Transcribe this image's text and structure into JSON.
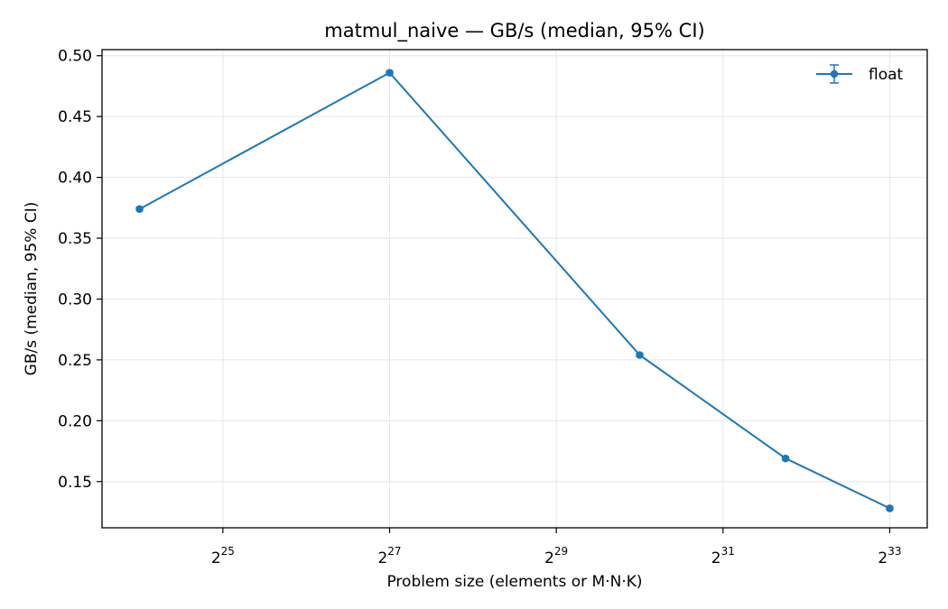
{
  "chart_data": {
    "type": "line",
    "title": "matmul_naive — GB/s (median, 95% CI)",
    "xlabel": "Problem size (elements or M·N·K)",
    "ylabel": "GB/s (median, 95% CI)",
    "x_scale": "log2",
    "x_log2_range": [
      23.55,
      33.45
    ],
    "ylim": [
      0.112,
      0.505
    ],
    "grid": true,
    "legend_position": "top-right",
    "x_ticks": [
      {
        "base": "2",
        "exp": "25",
        "log2": 25
      },
      {
        "base": "2",
        "exp": "27",
        "log2": 27
      },
      {
        "base": "2",
        "exp": "29",
        "log2": 29
      },
      {
        "base": "2",
        "exp": "31",
        "log2": 31
      },
      {
        "base": "2",
        "exp": "33",
        "log2": 33
      }
    ],
    "y_ticks": [
      "0.15",
      "0.20",
      "0.25",
      "0.30",
      "0.35",
      "0.40",
      "0.45",
      "0.50"
    ],
    "series": [
      {
        "name": "float",
        "color": "#1f77b4",
        "log2_x": [
          24.0,
          27.0,
          30.0,
          31.75,
          33.0
        ],
        "values": [
          0.374,
          0.486,
          0.254,
          0.169,
          0.128
        ]
      }
    ]
  }
}
